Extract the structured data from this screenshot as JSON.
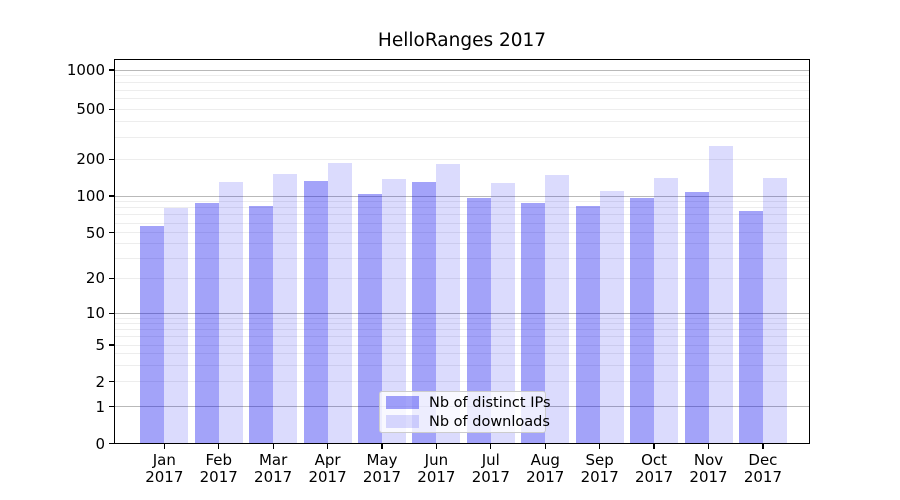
{
  "title": "HelloRanges 2017",
  "chart_data": {
    "type": "bar",
    "title": "HelloRanges 2017",
    "categories": [
      "Jan",
      "Feb",
      "Mar",
      "Apr",
      "May",
      "Jun",
      "Jul",
      "Aug",
      "Sep",
      "Oct",
      "Nov",
      "Dec"
    ],
    "category_year": "2017",
    "series": [
      {
        "name": "Nb of distinct IPs",
        "color_hex": "#a3a3f6",
        "fill": "rgba(0,0,238,0.36)",
        "values": [
          57,
          88,
          83,
          132,
          104,
          131,
          96,
          87,
          83,
          96,
          107,
          75
        ]
      },
      {
        "name": "Nb of downloads",
        "color_hex": "#dbdbf9",
        "fill": "rgba(0,0,238,0.14)",
        "values": [
          80,
          131,
          152,
          186,
          138,
          183,
          127,
          150,
          110,
          141,
          257,
          140
        ]
      }
    ],
    "yscale": "log",
    "yticks": [
      0,
      1,
      2,
      5,
      10,
      20,
      50,
      100,
      200,
      500,
      1000
    ],
    "ylim": [
      0,
      1200
    ],
    "grid": true,
    "legend_position": "lower center",
    "xlabel": "",
    "ylabel": ""
  },
  "colors": {
    "grid_major": "#b9b9b9",
    "grid_minor": "#ededed",
    "axis": "#000000",
    "background": "#ffffff"
  }
}
